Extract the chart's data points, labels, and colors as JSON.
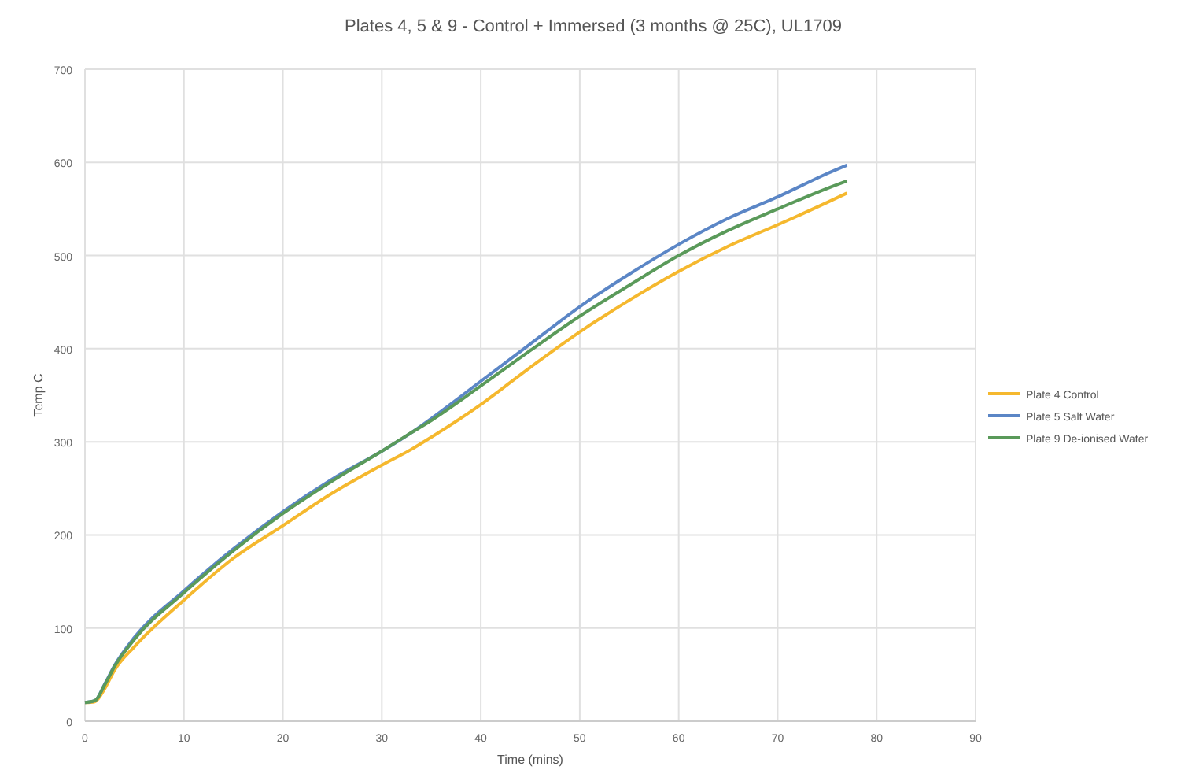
{
  "chart_data": {
    "type": "line",
    "title": "Plates 4, 5 & 9 - Control + Immersed (3 months @ 25C), UL1709",
    "xlabel": "Time (mins)",
    "ylabel": "Temp C",
    "x": [
      0,
      1,
      2,
      3,
      5,
      10,
      15,
      20,
      25,
      30,
      33,
      35,
      40,
      45,
      50,
      55,
      60,
      65,
      70,
      75,
      77
    ],
    "xlim": [
      0,
      90
    ],
    "xticks": [
      0,
      10,
      20,
      30,
      40,
      50,
      60,
      70,
      80,
      90
    ],
    "ylim": [
      0,
      700
    ],
    "yticks": [
      0,
      100,
      200,
      300,
      400,
      500,
      600,
      700
    ],
    "grid": true,
    "legend": "right",
    "line_style": "solid",
    "marker": "none",
    "series": [
      {
        "name": "Plate 4 Control",
        "color": "#f5b82e",
        "values": [
          20,
          21,
          35,
          55,
          80,
          130,
          175,
          210,
          245,
          275,
          292,
          305,
          340,
          380,
          418,
          452,
          483,
          510,
          533,
          557,
          567
        ]
      },
      {
        "name": "Plate 5 Salt Water",
        "color": "#5b86c6",
        "values": [
          20,
          22,
          40,
          60,
          90,
          140,
          185,
          225,
          260,
          290,
          310,
          325,
          365,
          405,
          445,
          480,
          512,
          540,
          563,
          588,
          597
        ]
      },
      {
        "name": "Plate 9 De-ionised Water",
        "color": "#5a9a5a",
        "values": [
          20,
          22,
          39,
          59,
          88,
          138,
          183,
          223,
          258,
          290,
          310,
          323,
          360,
          398,
          435,
          468,
          500,
          527,
          550,
          572,
          580
        ]
      }
    ]
  }
}
